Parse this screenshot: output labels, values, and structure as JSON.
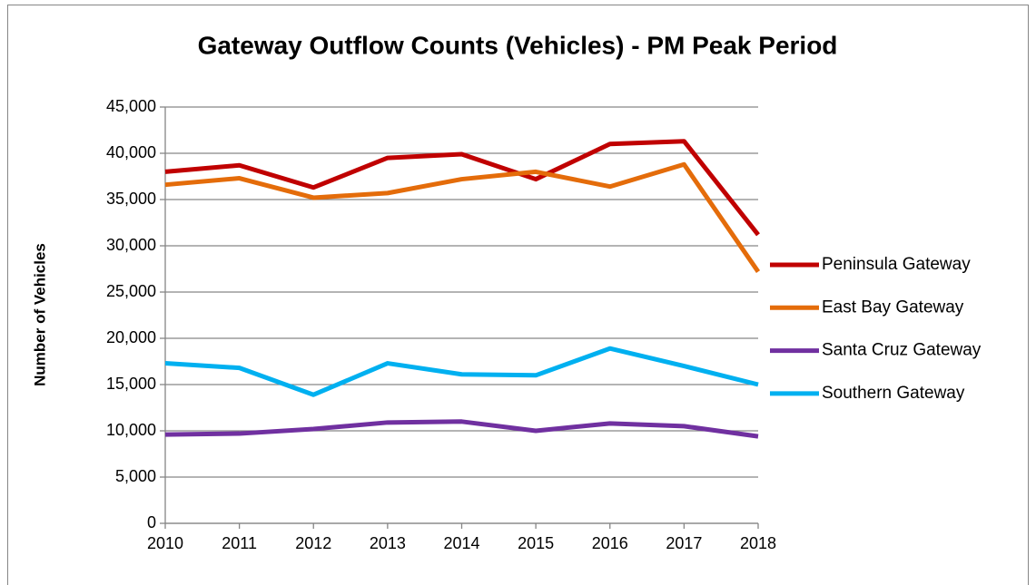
{
  "chart_data": {
    "type": "line",
    "title": "Gateway Outflow Counts (Vehicles) - PM Peak Period",
    "y_label": "Number of Vehicles",
    "categories": [
      "2010",
      "2011",
      "2012",
      "2013",
      "2014",
      "2015",
      "2016",
      "2017",
      "2018"
    ],
    "series": [
      {
        "name": "Peninsula Gateway",
        "color": "#c00000",
        "values": [
          38000,
          38700,
          36300,
          39500,
          39900,
          37200,
          41000,
          41300,
          31200
        ]
      },
      {
        "name": "East Bay Gateway",
        "color": "#e46c0a",
        "values": [
          36600,
          37300,
          35200,
          35700,
          37200,
          38000,
          36400,
          38800,
          27200
        ]
      },
      {
        "name": "Santa Cruz Gateway",
        "color": "#7030a0",
        "values": [
          9600,
          9700,
          10200,
          10900,
          11000,
          10000,
          10800,
          10500,
          9400
        ]
      },
      {
        "name": "Southern Gateway",
        "color": "#00b0f0",
        "values": [
          17300,
          16800,
          13900,
          17300,
          16100,
          16000,
          18900,
          17000,
          15000
        ]
      }
    ],
    "ylim": [
      0,
      45000
    ],
    "yticks": [
      0,
      {
        "value": 5000,
        "label": "5,000"
      },
      {
        "value": 10000,
        "label": "10,000"
      },
      {
        "value": 15000,
        "label": "15,000"
      },
      {
        "value": 20000,
        "label": "20,000"
      },
      {
        "value": 25000,
        "label": "25,000"
      },
      {
        "value": 30000,
        "label": "30,000"
      },
      {
        "value": 35000,
        "label": "35,000"
      },
      {
        "value": 40000,
        "label": "40,000"
      },
      {
        "value": 45000,
        "label": "45,000"
      }
    ],
    "grid": true,
    "legend": "right"
  }
}
